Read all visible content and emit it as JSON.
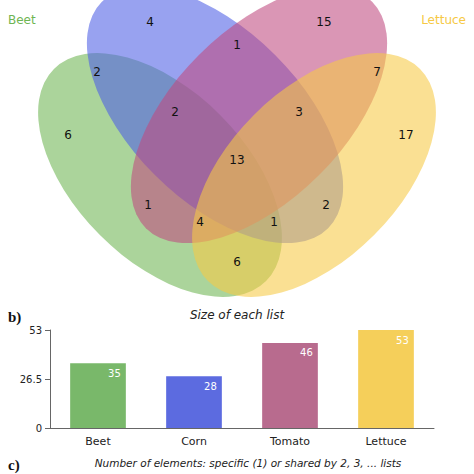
{
  "venn": {
    "type": "venn",
    "sets": [
      {
        "name": "Beet",
        "color": "#6fb553"
      },
      {
        "name": "Corn",
        "color": "#4d5fe6"
      },
      {
        "name": "Tomato",
        "color": "#bf4a80"
      },
      {
        "name": "Lettuce",
        "color": "#f6c945"
      }
    ],
    "set_labels": [
      "Beet",
      "Lettuce"
    ],
    "regions": [
      {
        "sets": [
          "Corn"
        ],
        "value": 4
      },
      {
        "sets": [
          "Tomato"
        ],
        "value": 15
      },
      {
        "sets": [
          "Corn",
          "Tomato"
        ],
        "value": 1
      },
      {
        "sets": [
          "Beet",
          "Corn"
        ],
        "value": 2
      },
      {
        "sets": [
          "Tomato",
          "Lettuce"
        ],
        "value": 7
      },
      {
        "sets": [
          "Beet"
        ],
        "value": 6
      },
      {
        "sets": [
          "Lettuce"
        ],
        "value": 17
      },
      {
        "sets": [
          "Beet",
          "Corn",
          "Tomato"
        ],
        "value": 2
      },
      {
        "sets": [
          "Corn",
          "Tomato",
          "Lettuce"
        ],
        "value": 3
      },
      {
        "sets": [
          "Beet",
          "Corn",
          "Tomato",
          "Lettuce"
        ],
        "value": 13
      },
      {
        "sets": [
          "Beet",
          "Tomato"
        ],
        "value": 1
      },
      {
        "sets": [
          "Corn",
          "Lettuce"
        ],
        "value": 2
      },
      {
        "sets": [
          "Beet",
          "Tomato",
          "Lettuce"
        ],
        "value": 4
      },
      {
        "sets": [
          "Beet",
          "Corn",
          "Lettuce"
        ],
        "value": 1
      },
      {
        "sets": [
          "Beet",
          "Lettuce"
        ],
        "value": 6
      }
    ]
  },
  "chart_data": {
    "type": "bar",
    "title": "Size of each list",
    "categories": [
      "Beet",
      "Corn",
      "Tomato",
      "Lettuce"
    ],
    "values": [
      35,
      28,
      46,
      53
    ],
    "colors": [
      "#79b86a",
      "#5c6be0",
      "#b86b8e",
      "#f5cf5a"
    ],
    "ylim": [
      0,
      53
    ],
    "yticks": [
      0,
      26.5,
      53
    ],
    "grid": false,
    "data_labels": true
  },
  "figure": {
    "panel_b_label": "b)",
    "panel_c": {
      "label": "c)",
      "title": "Number of elements: specific (1) or shared by 2, 3, ... lists"
    }
  }
}
